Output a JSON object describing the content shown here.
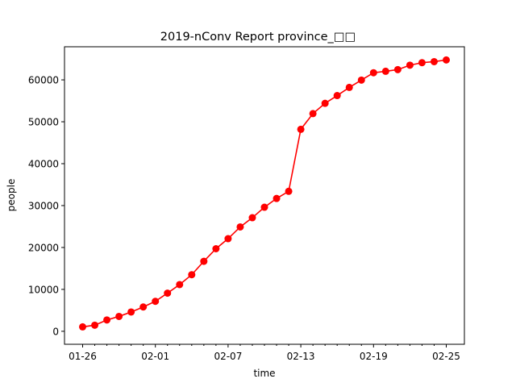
{
  "chart_data": {
    "type": "line",
    "title": "2019-nConv Report province_",
    "title_trailing_glyphs": [
      "□",
      "□"
    ],
    "xlabel": "time",
    "ylabel": "people",
    "x": [
      "01-26",
      "01-27",
      "01-28",
      "01-29",
      "01-30",
      "01-31",
      "02-01",
      "02-02",
      "02-03",
      "02-04",
      "02-05",
      "02-06",
      "02-07",
      "02-08",
      "02-09",
      "02-10",
      "02-11",
      "02-12",
      "02-13",
      "02-14",
      "02-15",
      "02-16",
      "02-17",
      "02-18",
      "02-19",
      "02-20",
      "02-21",
      "02-22",
      "02-23",
      "02-24",
      "02-25"
    ],
    "x_ticks": [
      "01-26",
      "02-01",
      "02-07",
      "02-13",
      "02-19",
      "02-25"
    ],
    "series": [
      {
        "values": [
          1050,
          1450,
          2700,
          3550,
          4600,
          5800,
          7150,
          9100,
          11150,
          13500,
          16700,
          19700,
          22100,
          24900,
          27100,
          29600,
          31700,
          33400,
          48200,
          51950,
          54400,
          56250,
          58200,
          59950,
          61700,
          62050,
          62450,
          63500,
          64100,
          64350,
          64750
        ],
        "color": "#ff0000",
        "marker": "circle"
      }
    ],
    "ylim": [
      -3100,
      67900
    ],
    "y_ticks": [
      0,
      10000,
      20000,
      30000,
      40000,
      50000,
      60000
    ],
    "grid": false,
    "legend": "none"
  }
}
